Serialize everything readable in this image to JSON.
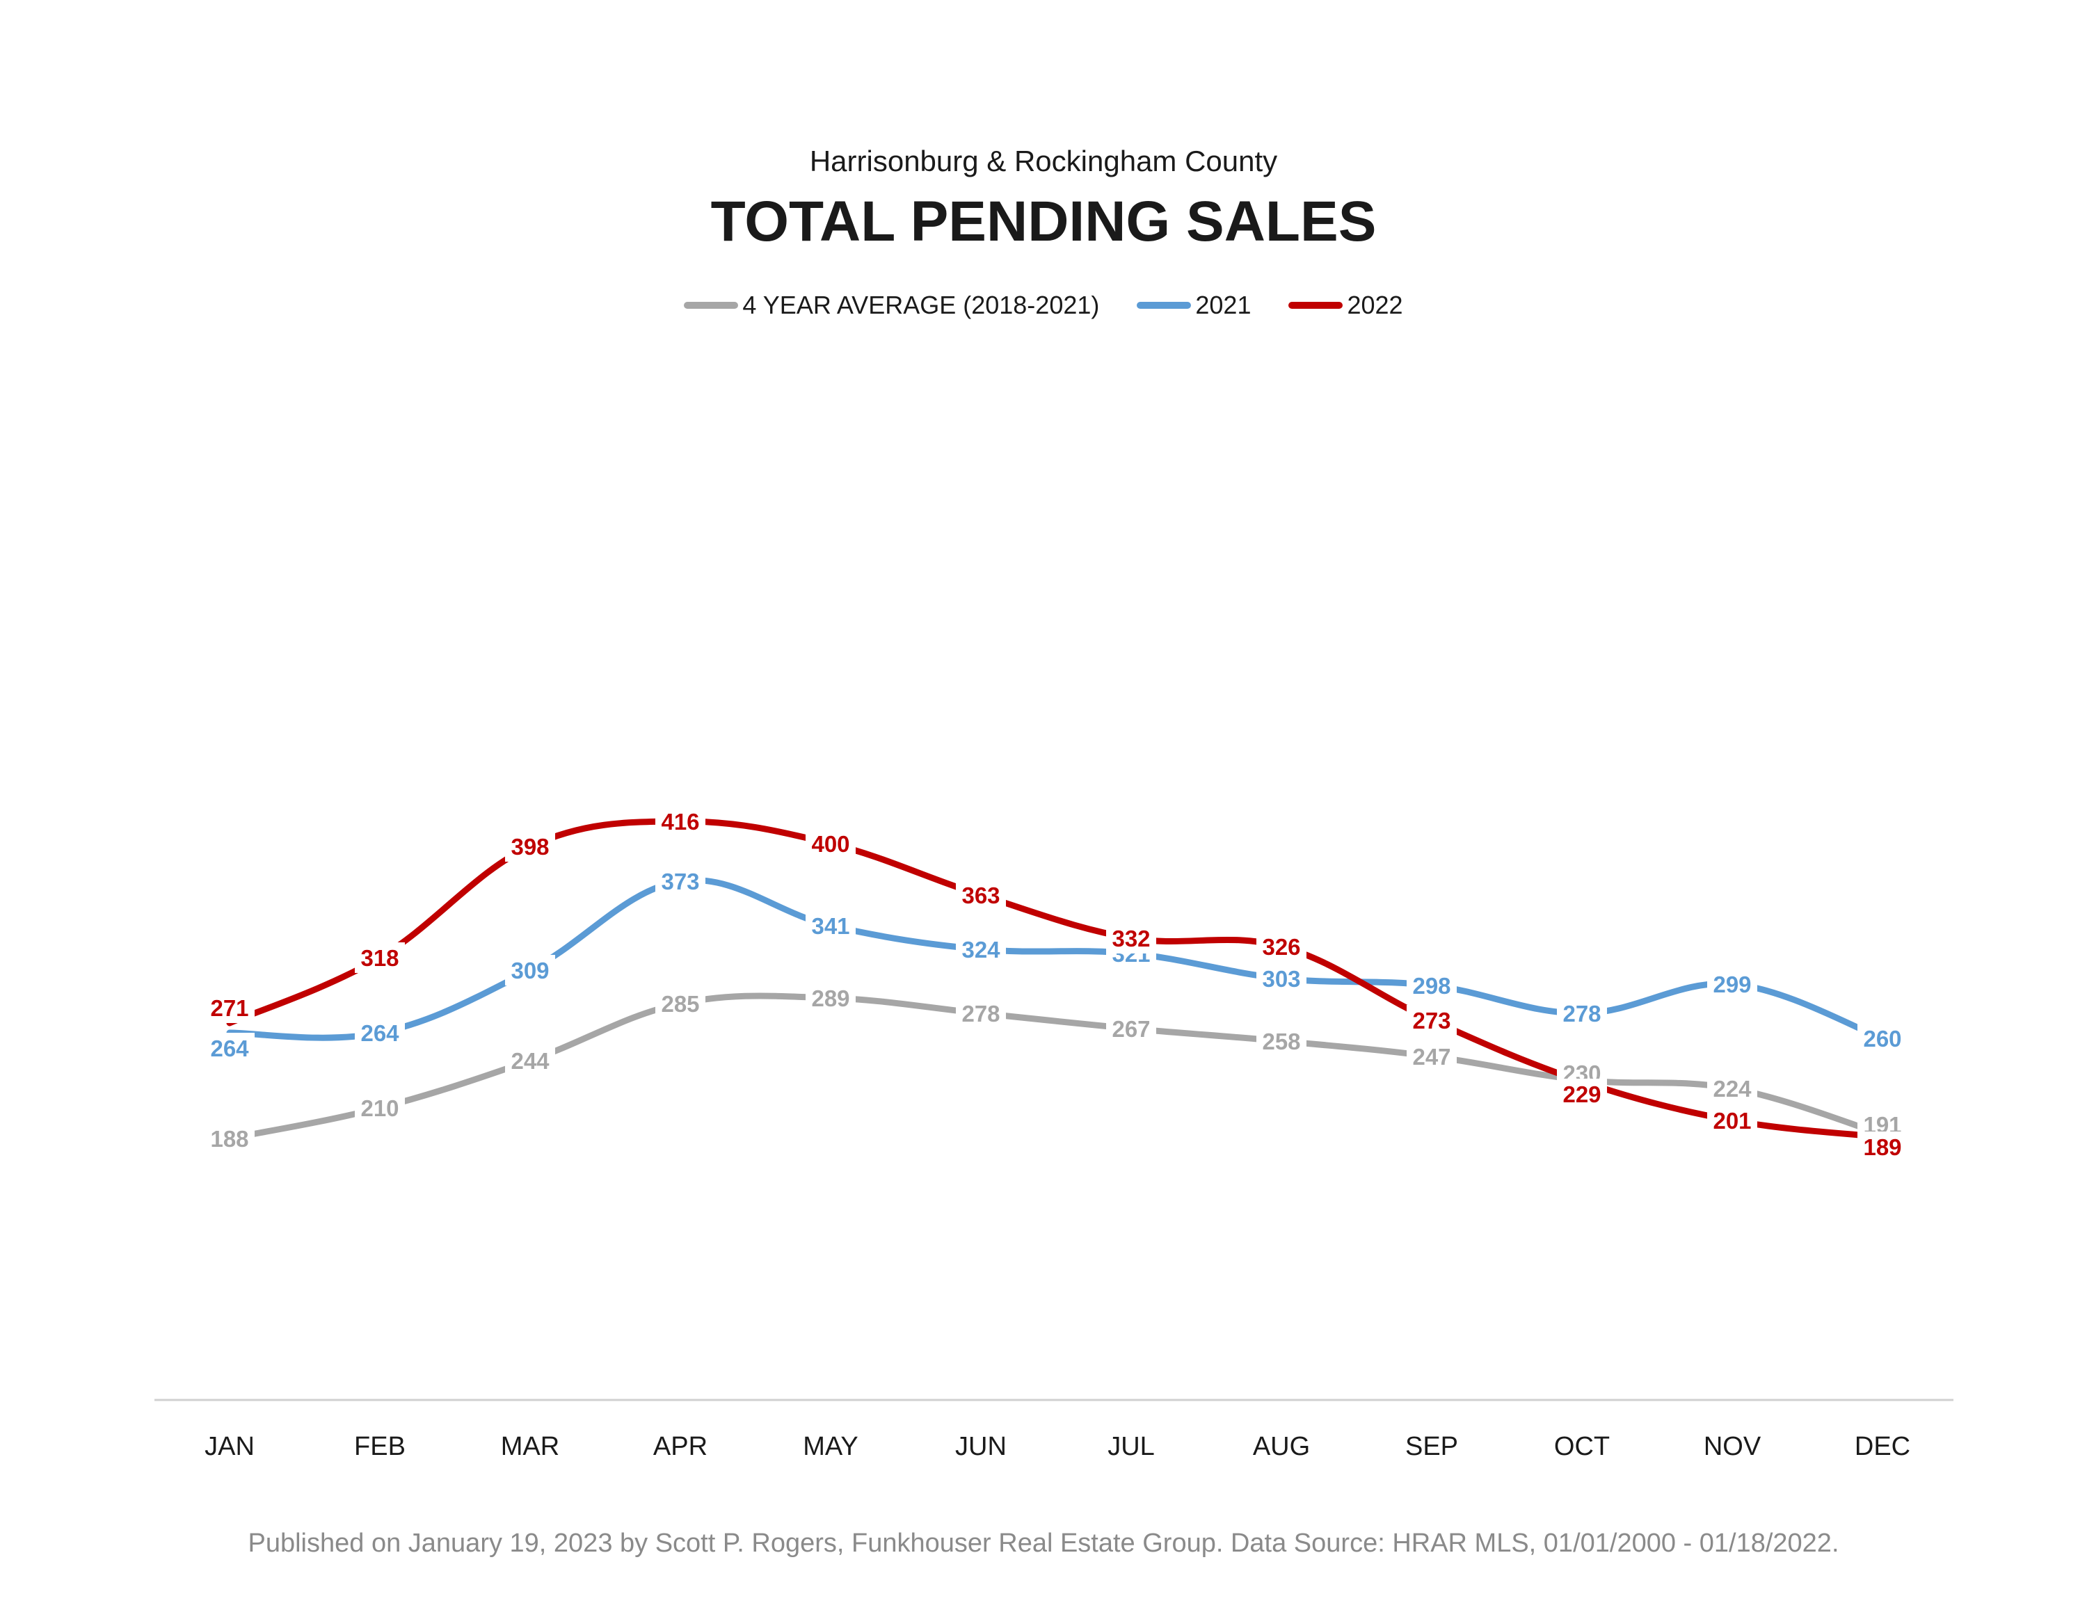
{
  "chart_data": {
    "type": "line",
    "subtitle": "Harrisonburg & Rockingham County",
    "title": "TOTAL PENDING SALES",
    "categories": [
      "JAN",
      "FEB",
      "MAR",
      "APR",
      "MAY",
      "JUN",
      "JUL",
      "AUG",
      "SEP",
      "OCT",
      "NOV",
      "DEC"
    ],
    "series": [
      {
        "name": "4 YEAR AVERAGE (2018-2021)",
        "color": "#a6a6a6",
        "values": [
          188,
          210,
          244,
          285,
          289,
          278,
          267,
          258,
          247,
          230,
          224,
          191
        ]
      },
      {
        "name": "2021",
        "color": "#5b9bd5",
        "values": [
          264,
          264,
          309,
          373,
          341,
          324,
          321,
          303,
          298,
          278,
          299,
          260
        ]
      },
      {
        "name": "2022",
        "color": "#c00000",
        "values": [
          271,
          318,
          398,
          416,
          400,
          363,
          332,
          326,
          273,
          229,
          201,
          189
        ]
      }
    ],
    "ylim": [
      0,
      450
    ],
    "grid": false,
    "legend_position": "top",
    "footer": "Published on January 19, 2023 by Scott P. Rogers, Funkhouser Real Estate Group. Data Source: HRAR MLS, 01/01/2000 - 01/18/2022."
  }
}
